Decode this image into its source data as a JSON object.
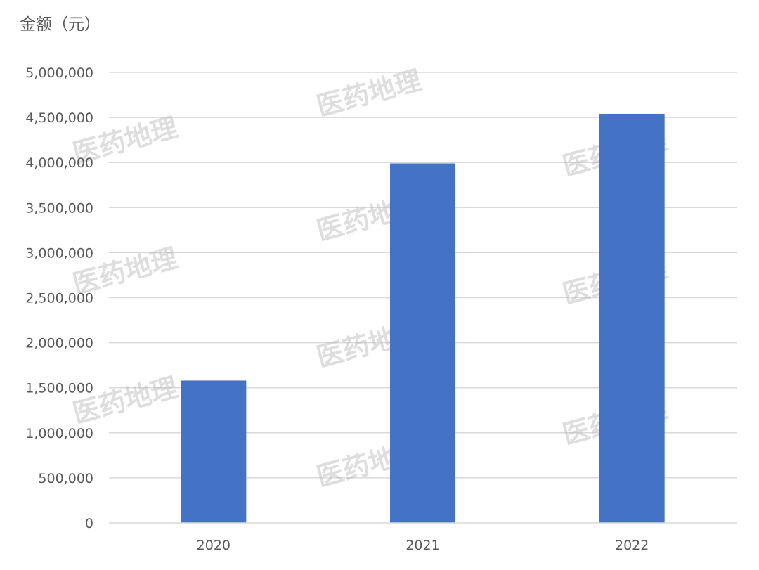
{
  "watermark": "医药地理",
  "chart_data": {
    "type": "bar",
    "categories": [
      "2020",
      "2021",
      "2022"
    ],
    "values": [
      1580000,
      3990000,
      4540000
    ],
    "title": "",
    "xlabel": "",
    "ylabel": "金额（元）",
    "ylim": [
      0,
      5000000
    ],
    "yticks": [
      0,
      500000,
      1000000,
      1500000,
      2000000,
      2500000,
      3000000,
      3500000,
      4000000,
      4500000,
      5000000
    ],
    "ytick_labels": [
      "0",
      "500,000",
      "1,000,000",
      "1,500,000",
      "2,000,000",
      "2,500,000",
      "3,000,000",
      "3,500,000",
      "4,000,000",
      "4,500,000",
      "5,000,000"
    ],
    "bar_color": "#4472c4",
    "grid": true,
    "legend": "none"
  }
}
